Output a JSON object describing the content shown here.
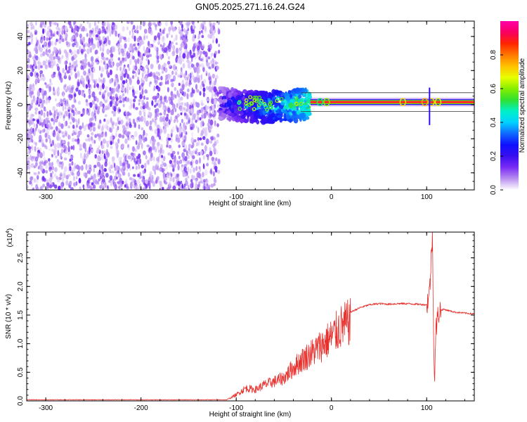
{
  "page_title": "GN05.2025.271.16.24.G24",
  "chart_data": [
    {
      "type": "heatmap",
      "title": "GN05.2025.271.16.24.G24",
      "xlabel": "Height of straight line (km)",
      "ylabel": "Frequency (Hz)",
      "xlim": [
        -320,
        150
      ],
      "ylim": [
        -50,
        49
      ],
      "xticks": [
        -300,
        -200,
        -100,
        0,
        100
      ],
      "yticks": [
        -40,
        -20,
        0,
        20,
        40
      ],
      "colorbar": {
        "label": "Normalized spectral amplitude",
        "range": [
          0,
          1
        ],
        "ticks": [
          "0.0",
          "0.2",
          "0.4",
          "0.6",
          "0.8"
        ],
        "tick_values": [
          0.0,
          0.2,
          0.4,
          0.6,
          0.8
        ],
        "colors": [
          "#ffffff",
          "#b98ff0",
          "#7a2cf5",
          "#3a0ff0",
          "#1010ff",
          "#0f68ff",
          "#00d2ff",
          "#00f0c8",
          "#30e030",
          "#88ee00",
          "#e8ff00",
          "#ffc000",
          "#ff7800",
          "#ff2600",
          "#f80060",
          "#ff00a8"
        ]
      },
      "regions": [
        {
          "name": "noise",
          "x_range": [
            -320,
            -118
          ],
          "y_range": [
            -50,
            49
          ],
          "level": "low"
        },
        {
          "name": "transition",
          "x_range": [
            -118,
            -22
          ],
          "center_hz": 1,
          "spread_hz": 9,
          "level": "medium"
        },
        {
          "name": "carrier",
          "x_range": [
            -22,
            150
          ],
          "center_hz": 1.5,
          "level": "high"
        }
      ]
    },
    {
      "type": "line",
      "xlabel": "Height of straight line (km)",
      "ylabel": "SNR (10 * v/v)",
      "y_multiplier": "(x10",
      "y_multiplier_exp": "4",
      "y_multiplier_close": ")",
      "xlim": [
        -320,
        150
      ],
      "ylim": [
        0,
        2.95
      ],
      "xticks": [
        -300,
        -200,
        -100,
        0,
        100
      ],
      "yticks": [
        "0.0",
        "0.5",
        "1.0",
        "1.5",
        "2.0",
        "2.5"
      ],
      "ytick_values": [
        0,
        0.5,
        1.0,
        1.5,
        2.0,
        2.5
      ],
      "color": "#e8302c",
      "series": [
        {
          "name": "SNR",
          "x": [
            -320,
            -110,
            -100,
            -90,
            -80,
            -70,
            -60,
            -50,
            -40,
            -30,
            -20,
            -10,
            0,
            10,
            20,
            30,
            40,
            50,
            60,
            70,
            80,
            90,
            100,
            103,
            106,
            108,
            110,
            113,
            118,
            130,
            150
          ],
          "y": [
            0.02,
            0.02,
            0.12,
            0.25,
            0.22,
            0.32,
            0.38,
            0.45,
            0.65,
            0.82,
            0.95,
            1.1,
            1.25,
            1.45,
            1.55,
            1.63,
            1.68,
            1.7,
            1.69,
            1.7,
            1.7,
            1.69,
            1.68,
            1.9,
            2.9,
            0.35,
            1.3,
            1.58,
            1.6,
            1.55,
            1.52
          ]
        }
      ]
    }
  ]
}
